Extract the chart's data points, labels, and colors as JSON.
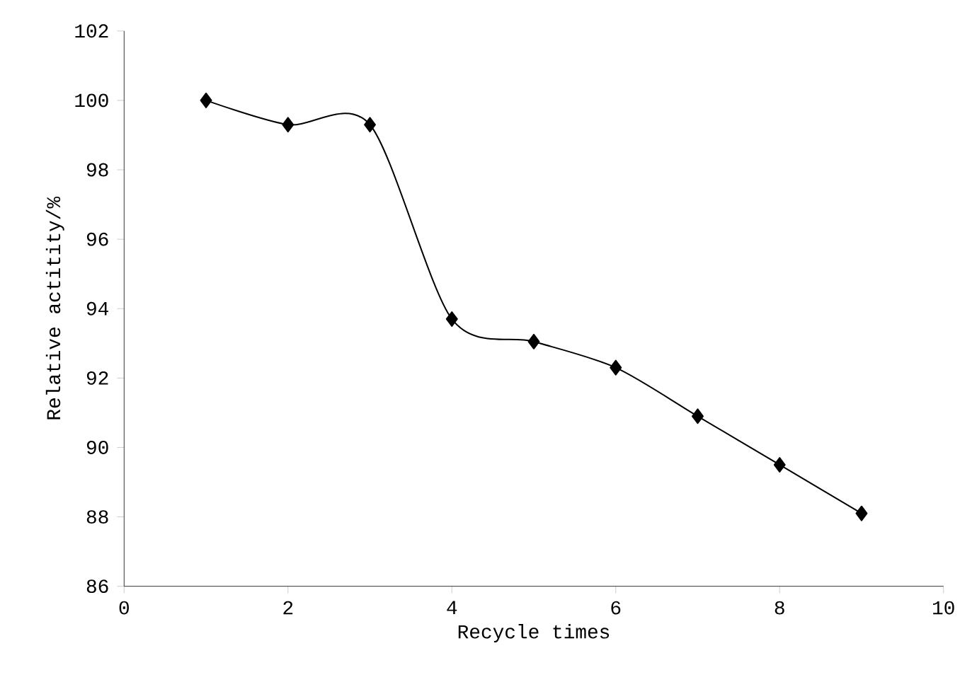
{
  "chart_data": {
    "type": "line",
    "xlabel": "Recycle times",
    "ylabel": "Relative actitity/%",
    "x": [
      1,
      2,
      3,
      4,
      5,
      6,
      7,
      8,
      9
    ],
    "series": [
      {
        "color": "#000000",
        "values": [
          100,
          99.3,
          99.3,
          93.7,
          93.05,
          92.3,
          90.9,
          89.5,
          88.1
        ]
      }
    ],
    "xlim": [
      0,
      10
    ],
    "xticks": [
      0,
      2,
      4,
      6,
      8,
      10
    ],
    "ylim": [
      86,
      102
    ],
    "yticks": [
      86,
      88,
      90,
      92,
      94,
      96,
      98,
      100,
      102
    ],
    "marker": "diamond",
    "line_style": "solid",
    "grid": false
  }
}
